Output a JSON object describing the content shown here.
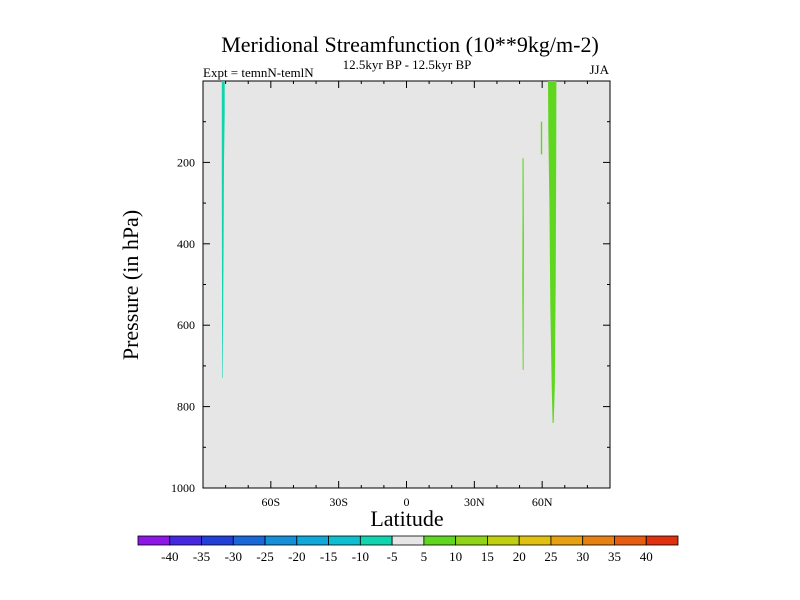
{
  "chart_data": {
    "type": "contour",
    "title": "Meridional Streamfunction (10**9kg/m-2)",
    "experiment": "Expt = temnN-temlN",
    "period": "12.5kyr BP - 12.5kyr BP",
    "season": "JJA",
    "xlabel": "Latitude",
    "ylabel": "Pressure (in hPa)",
    "xlim": [
      -90,
      90
    ],
    "ylim": [
      1000,
      0
    ],
    "x_ticks": [
      {
        "value": -60,
        "label": "60S"
      },
      {
        "value": -30,
        "label": "30S"
      },
      {
        "value": 0,
        "label": "0"
      },
      {
        "value": 30,
        "label": "30N"
      },
      {
        "value": 60,
        "label": "60N"
      }
    ],
    "y_ticks": [
      {
        "value": 200,
        "label": "200"
      },
      {
        "value": 400,
        "label": "400"
      },
      {
        "value": 600,
        "label": "600"
      },
      {
        "value": 800,
        "label": "800"
      },
      {
        "value": 1000,
        "label": "1000"
      }
    ],
    "background_color": "#e6e6e6",
    "colorbar": {
      "labels": [
        "-40",
        "-35",
        "-30",
        "-25",
        "-20",
        "-15",
        "-10",
        "-5",
        "5",
        "10",
        "15",
        "20",
        "25",
        "30",
        "35",
        "40"
      ],
      "colors": [
        "#8c17e6",
        "#4628e0",
        "#2040d8",
        "#1a68d8",
        "#1590d8",
        "#10a8d8",
        "#0dbfd0",
        "#10d4b0",
        "#e6e6e6",
        "#5fd620",
        "#90d418",
        "#c0d010",
        "#e0c010",
        "#e6a010",
        "#e68010",
        "#e65c10",
        "#e03010"
      ]
    },
    "regions": [
      {
        "name": "negative-band-60S",
        "color": "#10d4b0",
        "points": [
          [
            -81.7,
            0
          ],
          [
            -80.4,
            0
          ],
          [
            -80.4,
            80
          ],
          [
            -80.7,
            200
          ],
          [
            -80.9,
            400
          ],
          [
            -81.1,
            580
          ],
          [
            -81.3,
            730
          ],
          [
            -81.5,
            730
          ],
          [
            -81.6,
            500
          ],
          [
            -81.7,
            250
          ]
        ]
      },
      {
        "name": "positive-band-50N",
        "color": "#5fd620",
        "points": [
          [
            51.3,
            190
          ],
          [
            51.8,
            190
          ],
          [
            51.9,
            400
          ],
          [
            51.8,
            710
          ],
          [
            51.4,
            710
          ],
          [
            51.2,
            500
          ],
          [
            51.3,
            330
          ]
        ]
      },
      {
        "name": "positive-band-60N-small",
        "color": "#5fd620",
        "points": [
          [
            59.4,
            100
          ],
          [
            60.0,
            100
          ],
          [
            60.0,
            180
          ],
          [
            59.4,
            180
          ]
        ]
      },
      {
        "name": "positive-band-63N",
        "color": "#5fd620",
        "points": [
          [
            62.6,
            0
          ],
          [
            66.3,
            0
          ],
          [
            66.2,
            200
          ],
          [
            66.0,
            500
          ],
          [
            65.6,
            750
          ],
          [
            65.1,
            840
          ],
          [
            64.6,
            840
          ],
          [
            64.2,
            750
          ],
          [
            63.6,
            550
          ],
          [
            63.2,
            300
          ],
          [
            62.7,
            120
          ]
        ]
      }
    ]
  }
}
